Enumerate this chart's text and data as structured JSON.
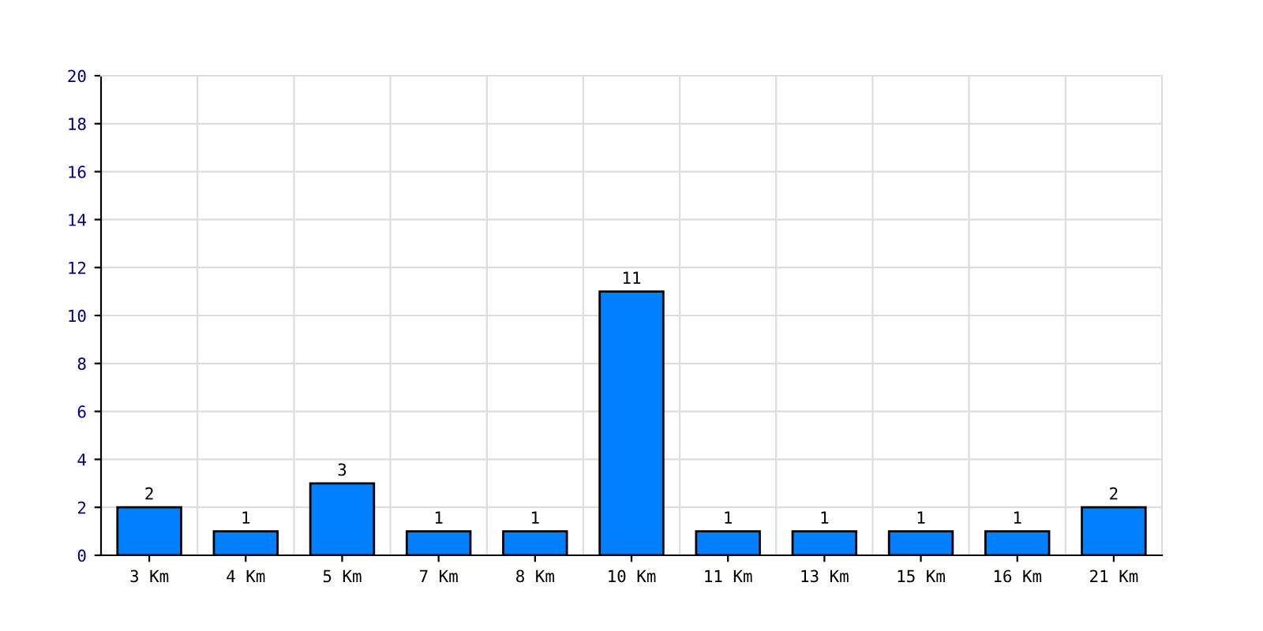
{
  "chart_data": {
    "type": "bar",
    "categories": [
      "3 Km",
      "4 Km",
      "5 Km",
      "7 Km",
      "8 Km",
      "10 Km",
      "11 Km",
      "13 Km",
      "15 Km",
      "16 Km",
      "21 Km"
    ],
    "values": [
      2,
      1,
      3,
      1,
      1,
      11,
      1,
      1,
      1,
      1,
      2
    ],
    "color": "#0080ff",
    "ylim": [
      0,
      20
    ],
    "yticks": [
      0,
      2,
      4,
      6,
      8,
      10,
      12,
      14,
      16,
      18,
      20
    ],
    "grid": true,
    "data_labels": true
  }
}
